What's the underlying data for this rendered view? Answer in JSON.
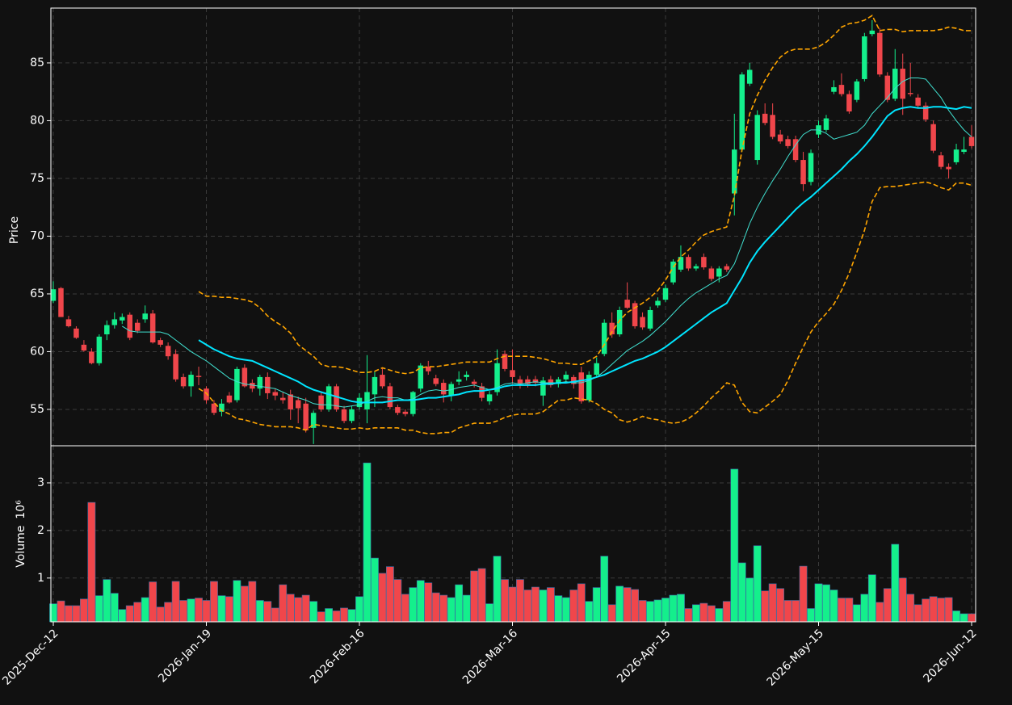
{
  "chart_data": {
    "type": "candlestick",
    "ylabel": "Price",
    "volume_label": "Volume",
    "volume_scale": "10⁶",
    "up_color": "#14ef8c",
    "down_color": "#f0464b",
    "grid": true,
    "ylim": [
      51.85,
      89.75
    ],
    "yticks": [
      55,
      60,
      65,
      70,
      75,
      80,
      85
    ],
    "volume_ylim": [
      0.08,
      3.78
    ],
    "volume_yticks": [
      1,
      2,
      3
    ],
    "categories": [
      "2025-Dec-12",
      null,
      null,
      null,
      null,
      null,
      null,
      null,
      null,
      null,
      null,
      null,
      null,
      null,
      null,
      null,
      null,
      null,
      null,
      null,
      "2026-Jan-19",
      null,
      null,
      null,
      null,
      null,
      null,
      null,
      null,
      null,
      null,
      null,
      null,
      null,
      null,
      null,
      null,
      null,
      null,
      null,
      "2026-Feb-16",
      null,
      null,
      null,
      null,
      null,
      null,
      null,
      null,
      null,
      null,
      null,
      null,
      null,
      null,
      null,
      null,
      null,
      null,
      null,
      "2026-Mar-16",
      null,
      null,
      null,
      null,
      null,
      null,
      null,
      null,
      null,
      null,
      null,
      null,
      null,
      null,
      null,
      null,
      null,
      null,
      null,
      "2026-Apr-15",
      null,
      null,
      null,
      null,
      null,
      null,
      null,
      null,
      null,
      null,
      null,
      null,
      null,
      null,
      null,
      null,
      null,
      null,
      null,
      "2026-May-15",
      null,
      null,
      null,
      null,
      null,
      null,
      null,
      null,
      null,
      null,
      null,
      null,
      null,
      null,
      null,
      null,
      null,
      null,
      null,
      "2026-Jun-12"
    ],
    "open": [
      64.4,
      65.5,
      62.8,
      62.0,
      60.6,
      60.0,
      59.0,
      61.5,
      62.3,
      62.7,
      63.2,
      62.5,
      62.8,
      63.3,
      61.0,
      60.5,
      59.8,
      57.8,
      57.0,
      57.9,
      56.8,
      55.5,
      54.8,
      56.2,
      55.8,
      58.6,
      57.3,
      56.8,
      57.8,
      56.5,
      56.0,
      56.3,
      55.8,
      55.5,
      53.4,
      56.2,
      55.0,
      57.0,
      55.0,
      54.0,
      55.2,
      55.0,
      56.3,
      58.0,
      57.0,
      55.2,
      54.8,
      54.6,
      56.8,
      58.7,
      57.7,
      57.3,
      56.2,
      57.4,
      57.8,
      57.4,
      57.0,
      55.7,
      56.5,
      59.8,
      58.4,
      57.6,
      57.6,
      57.6,
      56.2,
      57.6,
      57.2,
      57.6,
      57.8,
      58.2,
      55.8,
      58.0,
      59.8,
      62.5,
      61.5,
      64.5,
      64.2,
      63.0,
      62.0,
      64.0,
      64.5,
      66.0,
      67.1,
      68.2,
      67.2,
      68.2,
      67.2,
      66.5,
      67.4,
      73.7,
      77.5,
      83.2,
      76.6,
      80.6,
      80.5,
      78.8,
      78.4,
      78.4,
      76.6,
      74.7,
      78.8,
      79.2,
      82.5,
      83.1,
      82.3,
      81.8,
      83.6,
      87.5,
      87.6,
      83.9,
      81.9,
      84.5,
      82.4,
      82.0,
      81.3,
      79.7,
      77.0,
      76.0,
      76.4,
      77.3,
      78.6
    ],
    "high": [
      66.1,
      65.6,
      63.1,
      62.2,
      61.0,
      60.3,
      61.5,
      62.7,
      63.4,
      63.3,
      63.4,
      62.8,
      64.0,
      63.6,
      61.2,
      60.8,
      60.2,
      58.1,
      58.3,
      58.7,
      57.0,
      55.8,
      55.9,
      56.5,
      58.7,
      58.9,
      57.6,
      58.0,
      58.2,
      56.8,
      56.5,
      56.7,
      56.1,
      56.0,
      54.9,
      56.5,
      57.2,
      57.2,
      55.3,
      55.3,
      56.4,
      59.7,
      58.3,
      58.6,
      57.3,
      55.4,
      55.0,
      56.6,
      59.0,
      59.2,
      58.0,
      57.6,
      57.4,
      58.3,
      58.3,
      57.6,
      57.3,
      56.6,
      60.2,
      60.1,
      60.2,
      57.9,
      57.9,
      57.9,
      57.8,
      57.9,
      57.8,
      58.3,
      58.0,
      58.7,
      58.3,
      59.5,
      62.8,
      63.4,
      63.9,
      66.0,
      64.4,
      63.4,
      63.9,
      64.7,
      65.8,
      68.0,
      69.2,
      68.4,
      67.6,
      68.5,
      67.4,
      67.4,
      67.6,
      80.6,
      84.2,
      85.0,
      80.9,
      81.5,
      81.5,
      79.2,
      78.7,
      78.7,
      77.3,
      77.5,
      80.0,
      80.5,
      83.5,
      84.1,
      82.6,
      83.6,
      87.6,
      88.7,
      88.0,
      84.2,
      86.2,
      85.8,
      85.0,
      82.3,
      81.6,
      80.0,
      77.3,
      76.3,
      78.0,
      78.6,
      79.6
    ],
    "low": [
      64.2,
      63.0,
      62.1,
      61.1,
      60.0,
      58.9,
      58.8,
      61.0,
      62.0,
      62.4,
      61.0,
      61.6,
      62.5,
      60.7,
      60.4,
      59.3,
      57.4,
      56.8,
      56.1,
      57.1,
      55.5,
      54.5,
      54.4,
      55.5,
      55.6,
      56.9,
      56.5,
      56.2,
      55.9,
      55.8,
      55.5,
      54.1,
      53.8,
      53.0,
      52.0,
      54.8,
      54.8,
      54.8,
      53.8,
      53.8,
      55.0,
      53.8,
      55.2,
      56.8,
      55.0,
      54.5,
      54.4,
      54.4,
      56.5,
      58.0,
      57.0,
      55.6,
      55.7,
      57.1,
      57.5,
      56.9,
      55.7,
      55.4,
      56.2,
      58.3,
      57.2,
      56.8,
      56.9,
      57.0,
      55.3,
      56.9,
      56.9,
      57.4,
      56.8,
      55.5,
      55.6,
      57.8,
      59.6,
      61.2,
      61.3,
      63.7,
      62.0,
      61.9,
      61.8,
      63.8,
      64.3,
      65.8,
      66.9,
      67.0,
      67.0,
      67.1,
      66.1,
      66.0,
      66.9,
      71.8,
      77.3,
      83.0,
      76.2,
      79.6,
      78.4,
      78.0,
      77.6,
      76.4,
      73.9,
      74.4,
      78.5,
      79.0,
      82.3,
      82.1,
      80.6,
      81.6,
      83.4,
      87.3,
      83.8,
      81.6,
      81.7,
      80.5,
      82.1,
      81.1,
      79.9,
      77.2,
      75.8,
      75.0,
      76.2,
      77.1,
      77.6
    ],
    "close": [
      65.4,
      63.0,
      62.2,
      61.2,
      60.1,
      59.0,
      61.3,
      62.3,
      62.8,
      63.0,
      61.2,
      61.8,
      63.3,
      60.8,
      60.6,
      59.6,
      57.6,
      57.0,
      58.0,
      57.8,
      55.8,
      54.7,
      55.5,
      55.6,
      58.5,
      57.0,
      56.8,
      57.8,
      56.4,
      56.2,
      55.8,
      55.0,
      55.1,
      53.2,
      54.7,
      55.0,
      57.0,
      55.0,
      54.0,
      55.0,
      56.0,
      56.5,
      57.8,
      57.0,
      55.2,
      54.7,
      54.6,
      56.5,
      58.8,
      58.3,
      57.2,
      56.3,
      57.2,
      57.6,
      58.0,
      57.2,
      56.0,
      56.3,
      59.0,
      58.5,
      57.8,
      57.2,
      57.2,
      57.3,
      57.5,
      57.1,
      57.6,
      58.0,
      57.2,
      55.7,
      58.0,
      59.0,
      62.5,
      61.5,
      63.6,
      63.8,
      62.2,
      62.1,
      63.6,
      64.4,
      65.5,
      67.8,
      68.2,
      67.2,
      67.4,
      67.3,
      66.3,
      67.2,
      67.1,
      77.5,
      84.0,
      84.4,
      80.5,
      79.8,
      78.6,
      78.2,
      77.8,
      76.6,
      74.5,
      77.2,
      79.6,
      80.2,
      82.9,
      82.3,
      80.8,
      83.4,
      87.3,
      87.8,
      84.0,
      81.8,
      84.5,
      81.9,
      82.3,
      81.3,
      80.1,
      77.4,
      76.0,
      75.8,
      77.5,
      77.5,
      77.8
    ],
    "volume": [
      0.46,
      0.52,
      0.42,
      0.42,
      0.56,
      2.59,
      0.63,
      0.97,
      0.68,
      0.34,
      0.42,
      0.49,
      0.59,
      0.92,
      0.39,
      0.49,
      0.93,
      0.53,
      0.56,
      0.58,
      0.53,
      0.93,
      0.63,
      0.61,
      0.95,
      0.83,
      0.93,
      0.53,
      0.51,
      0.37,
      0.86,
      0.66,
      0.59,
      0.64,
      0.51,
      0.29,
      0.36,
      0.31,
      0.37,
      0.34,
      0.61,
      3.42,
      1.42,
      1.1,
      1.24,
      0.97,
      0.66,
      0.8,
      0.95,
      0.9,
      0.69,
      0.64,
      0.59,
      0.86,
      0.64,
      1.15,
      1.2,
      0.46,
      1.46,
      0.97,
      0.81,
      0.97,
      0.75,
      0.81,
      0.75,
      0.8,
      0.63,
      0.59,
      0.75,
      0.88,
      0.51,
      0.8,
      1.46,
      0.44,
      0.83,
      0.8,
      0.76,
      0.53,
      0.51,
      0.54,
      0.58,
      0.64,
      0.66,
      0.36,
      0.44,
      0.47,
      0.42,
      0.36,
      0.51,
      3.29,
      1.32,
      1.0,
      1.68,
      0.73,
      0.88,
      0.78,
      0.53,
      0.53,
      1.25,
      0.36,
      0.88,
      0.86,
      0.75,
      0.58,
      0.58,
      0.44,
      0.66,
      1.07,
      0.49,
      0.78,
      1.71,
      1.0,
      0.66,
      0.44,
      0.56,
      0.61,
      0.58,
      0.59,
      0.31,
      0.25,
      0.25
    ],
    "lines": [
      {
        "color": "#40e0d0",
        "style": "thin",
        "values": [
          null,
          null,
          null,
          null,
          null,
          null,
          null,
          null,
          null,
          62.2,
          61.8,
          61.7,
          61.7,
          61.7,
          61.7,
          61.5,
          61.0,
          60.5,
          60.0,
          59.6,
          59.2,
          58.7,
          58.2,
          57.7,
          57.4,
          57.2,
          57.1,
          57.0,
          56.9,
          56.8,
          56.5,
          56.2,
          56.0,
          55.8,
          55.5,
          55.4,
          55.4,
          55.3,
          55.2,
          55.3,
          55.4,
          55.7,
          56.0,
          56.1,
          56.0,
          56.0,
          55.8,
          55.9,
          56.3,
          56.6,
          56.7,
          56.6,
          56.7,
          56.9,
          57.0,
          57.1,
          56.9,
          56.7,
          56.9,
          57.2,
          57.3,
          57.2,
          57.3,
          57.4,
          57.3,
          57.3,
          57.3,
          57.4,
          57.3,
          57.3,
          57.5,
          57.8,
          58.3,
          58.9,
          59.5,
          60.1,
          60.5,
          60.9,
          61.4,
          62.0,
          62.6,
          63.3,
          64.0,
          64.6,
          65.1,
          65.5,
          65.9,
          66.3,
          66.6,
          67.6,
          69.3,
          71.1,
          72.5,
          73.7,
          74.8,
          75.8,
          76.9,
          77.9,
          78.8,
          79.2,
          79.2,
          78.9,
          78.4,
          78.6,
          78.8,
          79.0,
          79.6,
          80.6,
          81.3,
          82.0,
          82.8,
          83.4,
          83.7,
          83.7,
          83.6,
          82.8,
          82.0,
          80.9,
          80.0,
          79.2,
          78.6
        ]
      },
      {
        "color": "#00e5ff",
        "style": "thick",
        "values": [
          null,
          null,
          null,
          null,
          null,
          null,
          null,
          null,
          null,
          null,
          null,
          null,
          null,
          null,
          null,
          null,
          null,
          null,
          null,
          61.0,
          60.6,
          60.2,
          59.9,
          59.6,
          59.4,
          59.3,
          59.2,
          58.9,
          58.6,
          58.3,
          58.0,
          57.7,
          57.4,
          57.0,
          56.7,
          56.5,
          56.3,
          56.1,
          55.9,
          55.7,
          55.6,
          55.6,
          55.6,
          55.6,
          55.7,
          55.8,
          55.8,
          55.8,
          55.9,
          56.0,
          56.0,
          56.1,
          56.2,
          56.3,
          56.5,
          56.6,
          56.6,
          56.7,
          56.8,
          57.0,
          57.1,
          57.1,
          57.1,
          57.1,
          57.2,
          57.2,
          57.3,
          57.3,
          57.4,
          57.5,
          57.6,
          57.8,
          58.0,
          58.3,
          58.6,
          58.9,
          59.2,
          59.4,
          59.7,
          60.0,
          60.4,
          60.9,
          61.4,
          61.9,
          62.4,
          62.9,
          63.4,
          63.8,
          64.2,
          65.3,
          66.4,
          67.7,
          68.7,
          69.5,
          70.2,
          70.9,
          71.6,
          72.3,
          72.9,
          73.4,
          74.0,
          74.6,
          75.2,
          75.8,
          76.5,
          77.1,
          77.8,
          78.6,
          79.5,
          80.4,
          80.9,
          81.1,
          81.2,
          81.1,
          81.1,
          81.2,
          81.2,
          81.1,
          81.0,
          81.2,
          81.1
        ]
      },
      {
        "color": "#ffa500",
        "style": "dashed",
        "values": [
          null,
          null,
          null,
          null,
          null,
          null,
          null,
          null,
          null,
          null,
          null,
          null,
          null,
          null,
          null,
          null,
          null,
          null,
          null,
          65.2,
          64.8,
          64.8,
          64.7,
          64.7,
          64.6,
          64.5,
          64.3,
          63.8,
          63.1,
          62.6,
          62.2,
          61.6,
          60.6,
          60.1,
          59.6,
          58.9,
          58.7,
          58.7,
          58.6,
          58.4,
          58.2,
          58.2,
          58.3,
          58.6,
          58.4,
          58.2,
          58.1,
          58.2,
          58.6,
          58.7,
          58.7,
          58.8,
          58.9,
          59.0,
          59.1,
          59.1,
          59.1,
          59.1,
          59.4,
          59.6,
          59.6,
          59.6,
          59.6,
          59.5,
          59.4,
          59.2,
          59.0,
          59.0,
          58.9,
          58.9,
          59.2,
          59.6,
          60.6,
          61.7,
          62.7,
          63.4,
          63.8,
          64.2,
          64.7,
          65.3,
          66.2,
          67.3,
          68.2,
          68.8,
          69.5,
          70.1,
          70.4,
          70.6,
          70.8,
          73.5,
          77.5,
          80.6,
          82.2,
          83.5,
          84.6,
          85.5,
          86.0,
          86.2,
          86.2,
          86.2,
          86.4,
          86.8,
          87.4,
          88.1,
          88.4,
          88.5,
          88.7,
          89.1,
          87.8,
          87.9,
          87.9,
          87.7,
          87.8,
          87.8,
          87.8,
          87.8,
          87.9,
          88.1,
          88.0,
          87.8,
          87.8
        ]
      },
      {
        "color": "#ffa500",
        "style": "dashed",
        "values": [
          null,
          null,
          null,
          null,
          null,
          null,
          null,
          null,
          null,
          null,
          null,
          null,
          null,
          null,
          null,
          null,
          null,
          null,
          null,
          56.8,
          56.4,
          55.6,
          54.9,
          54.6,
          54.2,
          54.1,
          53.9,
          53.7,
          53.6,
          53.5,
          53.5,
          53.5,
          53.4,
          53.2,
          53.7,
          53.6,
          53.5,
          53.4,
          53.3,
          53.3,
          53.4,
          53.3,
          53.4,
          53.4,
          53.4,
          53.4,
          53.2,
          53.2,
          53.0,
          52.9,
          52.9,
          53.0,
          53.0,
          53.4,
          53.6,
          53.8,
          53.8,
          53.8,
          54.0,
          54.3,
          54.5,
          54.6,
          54.6,
          54.6,
          54.8,
          55.3,
          55.8,
          55.8,
          56.0,
          55.9,
          55.8,
          55.5,
          55.0,
          54.7,
          54.1,
          53.9,
          54.1,
          54.4,
          54.2,
          54.1,
          53.9,
          53.8,
          53.9,
          54.2,
          54.7,
          55.3,
          56.0,
          56.6,
          57.3,
          57.1,
          55.6,
          54.8,
          54.7,
          55.2,
          55.7,
          56.3,
          57.5,
          59.0,
          60.4,
          61.7,
          62.6,
          63.3,
          64.1,
          65.3,
          66.8,
          68.6,
          70.5,
          73.0,
          74.2,
          74.3,
          74.3,
          74.4,
          74.5,
          74.6,
          74.7,
          74.5,
          74.2,
          74.0,
          74.6,
          74.6,
          74.4
        ]
      }
    ]
  }
}
